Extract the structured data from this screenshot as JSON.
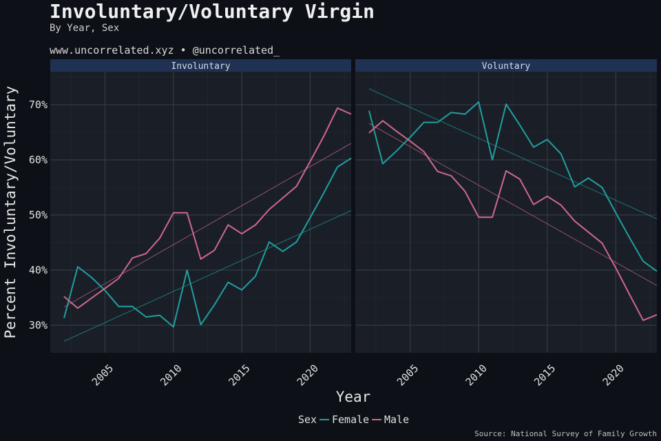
{
  "header": {
    "title": "Involuntary/Voluntary Virgin",
    "subtitle": "By Year, Sex",
    "site": "www.uncorrelated.xyz • @uncorrelated_",
    "source": "Source: National Survey of Family Growth"
  },
  "colors": {
    "background": "#0d1117",
    "panel": "#1a1f27",
    "strip": "#1f3253",
    "grid": "#3a4048",
    "female": "#20a0a0",
    "male": "#d0688c"
  },
  "chart_data": {
    "type": "line",
    "xlabel": "Year",
    "ylabel": "Percent Involuntary/Voluntary",
    "xlim": [
      2002,
      2023
    ],
    "ylim": [
      25,
      76
    ],
    "x_ticks": [
      2005,
      2010,
      2015,
      2020
    ],
    "y_ticks": [
      30,
      40,
      50,
      60,
      70
    ],
    "y_tick_labels": [
      "30%",
      "40%",
      "50%",
      "60%",
      "70%"
    ],
    "legend": {
      "title": "Sex",
      "position": "bottom",
      "entries": [
        "Female",
        "Male"
      ]
    },
    "grid": true,
    "trend_lines": true,
    "panels": [
      {
        "name": "Involuntary",
        "series": [
          {
            "name": "Female",
            "x": [
              2002,
              2003,
              2004,
              2005,
              2006,
              2007,
              2008,
              2009,
              2010,
              2011,
              2012,
              2013,
              2014,
              2015,
              2016,
              2017,
              2018,
              2019,
              2020,
              2021,
              2022,
              2023
            ],
            "values": [
              31.3,
              40.6,
              38.7,
              36.3,
              33.4,
              33.4,
              31.5,
              31.8,
              29.7,
              40.0,
              30.1,
              33.7,
              37.8,
              36.4,
              38.9,
              45.1,
              43.4,
              45.1,
              49.5,
              54.0,
              58.7,
              60.3
            ]
          },
          {
            "name": "Male",
            "x": [
              2002,
              2003,
              2004,
              2005,
              2006,
              2007,
              2008,
              2009,
              2010,
              2011,
              2012,
              2013,
              2014,
              2015,
              2016,
              2017,
              2018,
              2019,
              2020,
              2021,
              2022,
              2023
            ],
            "values": [
              35.2,
              33.1,
              34.9,
              36.7,
              38.5,
              42.2,
              43.0,
              45.8,
              50.4,
              50.4,
              42.0,
              43.6,
              48.2,
              46.6,
              48.2,
              51.0,
              53.1,
              55.2,
              59.7,
              64.3,
              69.4,
              68.3
            ]
          }
        ],
        "trends": [
          {
            "name": "Female",
            "start": [
              2002,
              27.1
            ],
            "end": [
              2023,
              50.8
            ]
          },
          {
            "name": "Male",
            "start": [
              2002,
              33.3
            ],
            "end": [
              2023,
              63.0
            ]
          }
        ]
      },
      {
        "name": "Voluntary",
        "series": [
          {
            "name": "Female",
            "x": [
              2002,
              2003,
              2004,
              2005,
              2006,
              2007,
              2008,
              2009,
              2010,
              2011,
              2012,
              2013,
              2014,
              2015,
              2016,
              2017,
              2018,
              2019,
              2020,
              2021,
              2022,
              2023
            ],
            "values": [
              68.9,
              59.3,
              61.6,
              64.1,
              66.8,
              66.8,
              68.6,
              68.3,
              70.5,
              60.0,
              70.1,
              66.3,
              62.3,
              63.7,
              61.1,
              55.1,
              56.7,
              55.0,
              50.4,
              45.9,
              41.6,
              39.8
            ]
          },
          {
            "name": "Male",
            "x": [
              2002,
              2003,
              2004,
              2005,
              2006,
              2007,
              2008,
              2009,
              2010,
              2011,
              2012,
              2013,
              2014,
              2015,
              2016,
              2017,
              2018,
              2019,
              2020,
              2021,
              2022,
              2023
            ],
            "values": [
              64.9,
              67.1,
              65.2,
              63.4,
              61.5,
              57.9,
              57.1,
              54.3,
              49.6,
              49.6,
              58.0,
              56.5,
              51.9,
              53.4,
              51.8,
              48.9,
              46.9,
              44.9,
              40.4,
              35.6,
              30.9,
              31.9
            ]
          }
        ],
        "trends": [
          {
            "name": "Female",
            "start": [
              2002,
              72.9
            ],
            "end": [
              2023,
              49.3
            ]
          },
          {
            "name": "Male",
            "start": [
              2002,
              66.6
            ],
            "end": [
              2023,
              37.2
            ]
          }
        ]
      }
    ]
  }
}
